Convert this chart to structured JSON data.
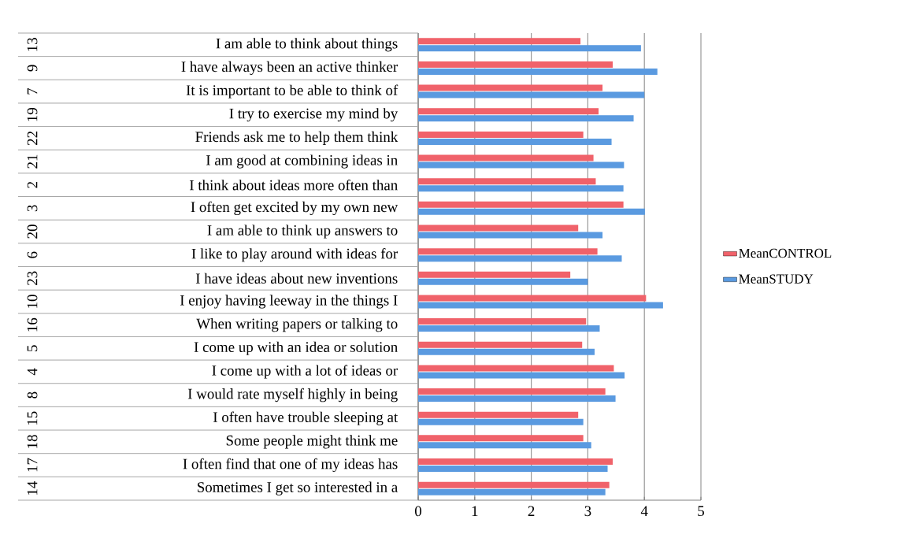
{
  "chart_data": {
    "type": "bar",
    "orientation": "horizontal",
    "categories": [
      "I am able to think about things",
      "I have always been an active thinker",
      "It is important to be able to think of",
      "I try to exercise my mind by",
      "Friends ask me to help them think",
      "I am good at combining ideas in",
      "I think about ideas more often than",
      "I often get excited by my own new",
      "I am able to think up answers to",
      "I like to play around with ideas for",
      "I have ideas about new inventions",
      "I enjoy having leeway in the things I",
      "When writing papers or talking to",
      "I come up with an idea or solution",
      "I come up with a lot of ideas or",
      "I would rate myself highly in being",
      "I often have trouble sleeping at",
      "Some people might think me",
      "I often find that one of my ideas has",
      "Sometimes I get so interested in a"
    ],
    "annotations": [
      "13",
      "9",
      "7",
      "19",
      "22",
      "21",
      "2",
      "3",
      "20",
      "6",
      "23",
      "10",
      "16",
      "5",
      "4",
      "8",
      "15",
      "18",
      "17",
      "14"
    ],
    "series": [
      {
        "name": "MeanCONTROL",
        "color": "#f0626a",
        "values": [
          2.87,
          3.44,
          3.26,
          3.19,
          2.92,
          3.1,
          3.14,
          3.63,
          2.83,
          3.17,
          2.69,
          4.03,
          2.97,
          2.9,
          3.46,
          3.31,
          2.83,
          2.92,
          3.44,
          3.38
        ]
      },
      {
        "name": "MeanSTUDY",
        "color": "#5a9ae0",
        "values": [
          3.94,
          4.23,
          4.0,
          3.81,
          3.42,
          3.64,
          3.63,
          4.01,
          3.26,
          3.6,
          3.0,
          4.33,
          3.21,
          3.12,
          3.65,
          3.49,
          2.92,
          3.06,
          3.35,
          3.31
        ]
      }
    ],
    "xlim": [
      0,
      5
    ],
    "xticks": [
      0,
      1,
      2,
      3,
      4,
      5
    ],
    "grid": "x",
    "legend": "right"
  }
}
